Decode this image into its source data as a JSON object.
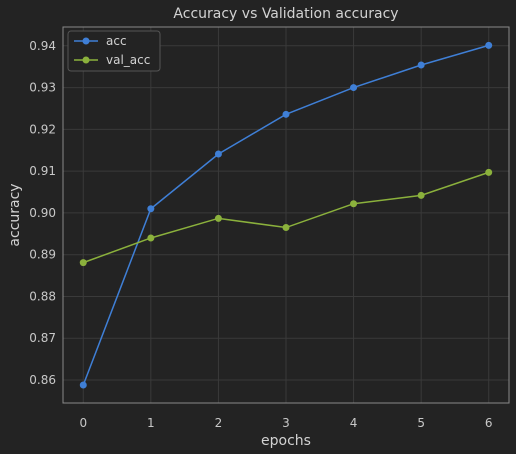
{
  "chart_data": {
    "type": "line",
    "title": "Accuracy vs Validation accuracy",
    "xlabel": "epochs",
    "ylabel": "accuracy",
    "x": [
      0,
      1,
      2,
      3,
      4,
      5,
      6
    ],
    "xticks": [
      "0",
      "1",
      "2",
      "3",
      "4",
      "5",
      "6"
    ],
    "yticks": [
      "0.86",
      "0.87",
      "0.88",
      "0.89",
      "0.90",
      "0.91",
      "0.92",
      "0.93",
      "0.94"
    ],
    "xlim": [
      -0.3,
      6.3
    ],
    "ylim": [
      0.8545,
      0.9445
    ],
    "grid": true,
    "legend_position": "top-left",
    "series": [
      {
        "name": "acc",
        "color": "#3f7fd6",
        "values": [
          0.8588,
          0.901,
          0.9141,
          0.9236,
          0.93,
          0.9354,
          0.9401
        ]
      },
      {
        "name": "val_acc",
        "color": "#8bb13c",
        "values": [
          0.8881,
          0.894,
          0.8987,
          0.8965,
          0.9022,
          0.9042,
          0.9097
        ]
      }
    ],
    "colors": {
      "background": "#232323",
      "grid": "#3a3a3a",
      "frame": "#8a8a8a"
    }
  }
}
